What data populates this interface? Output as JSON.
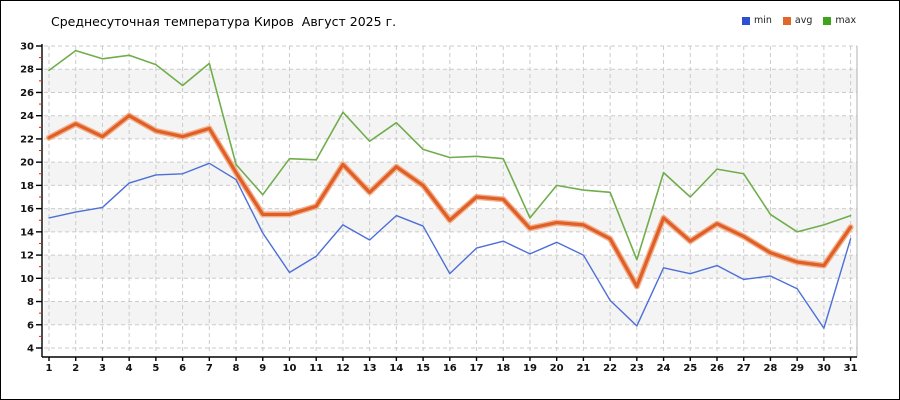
{
  "title": "Среднесуточная температура Киров  Август 2025 г.",
  "legend": [
    {
      "label": "min",
      "color": "#2d4fd2"
    },
    {
      "label": "avg",
      "color": "#e2662a"
    },
    {
      "label": "max",
      "color": "#3da51d"
    }
  ],
  "chart_data": {
    "type": "line",
    "title": "Среднесуточная температура Киров  Август 2025 г.",
    "xlabel": "",
    "ylabel": "",
    "x": [
      1,
      2,
      3,
      4,
      5,
      6,
      7,
      8,
      9,
      10,
      11,
      12,
      13,
      14,
      15,
      16,
      17,
      18,
      19,
      20,
      21,
      22,
      23,
      24,
      25,
      26,
      27,
      28,
      29,
      30,
      31
    ],
    "xtick_labels": [
      "1",
      "2",
      "3",
      "4",
      "5",
      "6",
      "7",
      "8",
      "9",
      "10",
      "11",
      "12",
      "13",
      "14",
      "15",
      "16",
      "17",
      "18",
      "19",
      "20",
      "21",
      "22",
      "23",
      "24",
      "25",
      "26",
      "27",
      "28",
      "29",
      "30",
      "31"
    ],
    "ylim": [
      4,
      30
    ],
    "ytick_step": 2,
    "ytick_labels": [
      "4",
      "6",
      "8",
      "10",
      "12",
      "14",
      "16",
      "18",
      "20",
      "22",
      "24",
      "26",
      "28",
      "30"
    ],
    "grid": "dashed-on",
    "legend_position": "top-right",
    "band_ranges": [
      [
        28,
        26
      ],
      [
        24,
        22
      ],
      [
        20,
        18
      ],
      [
        16,
        14
      ],
      [
        12,
        10
      ],
      [
        8,
        6
      ]
    ],
    "band_color": "#f4f4f4",
    "grid_color": "#cbcbcb",
    "axis_color": "#000000",
    "minor_tick_color": "#cc2222",
    "series": [
      {
        "name": "max",
        "color": "#70ad4b",
        "width": 1.6,
        "values": [
          27.9,
          29.6,
          28.9,
          29.2,
          28.4,
          26.6,
          28.5,
          19.8,
          17.2,
          20.3,
          20.2,
          24.3,
          21.8,
          23.4,
          21.1,
          20.4,
          20.5,
          20.3,
          15.2,
          18.0,
          17.6,
          17.4,
          11.6,
          19.1,
          17.0,
          19.4,
          19.0,
          15.5,
          14.0,
          14.6,
          15.4
        ]
      },
      {
        "name": "min",
        "color": "#4d6fd6",
        "width": 1.4,
        "values": [
          15.2,
          15.7,
          16.1,
          18.2,
          18.9,
          19.0,
          19.9,
          18.5,
          13.9,
          10.5,
          11.9,
          14.6,
          13.3,
          15.4,
          14.5,
          10.4,
          12.6,
          13.2,
          12.1,
          13.1,
          12.0,
          8.1,
          5.9,
          10.9,
          10.4,
          11.1,
          9.9,
          10.2,
          9.1,
          5.7,
          13.4
        ]
      },
      {
        "name": "avg",
        "color": "#e05f28",
        "halo": "#f2b089",
        "width": 3.2,
        "halo_width": 6,
        "values": [
          22.1,
          23.3,
          22.2,
          24.0,
          22.7,
          22.2,
          22.9,
          19.1,
          15.5,
          15.5,
          16.2,
          19.8,
          17.4,
          19.6,
          18.0,
          15.0,
          17.0,
          16.8,
          14.3,
          14.8,
          14.6,
          13.4,
          9.3,
          15.2,
          13.2,
          14.7,
          13.6,
          12.2,
          11.4,
          11.1,
          14.4
        ]
      }
    ]
  }
}
